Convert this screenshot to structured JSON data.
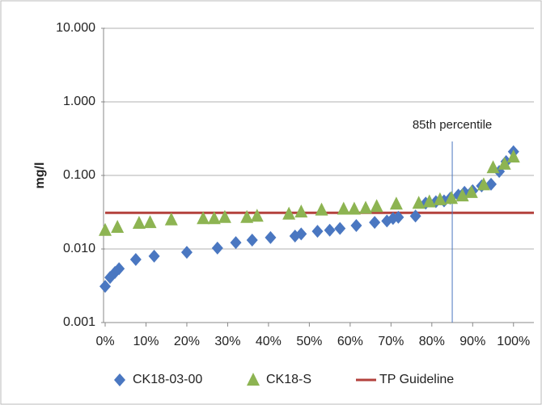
{
  "chart_data": {
    "type": "scatter",
    "y_label": "mg/l",
    "xlim": [
      0,
      105
    ],
    "ylim": [
      0.001,
      10
    ],
    "log_y": true,
    "grid": true,
    "legend": "bottom",
    "xticks": [
      {
        "value": 0,
        "label": "0%"
      },
      {
        "value": 10,
        "label": "10%"
      },
      {
        "value": 20,
        "label": "20%"
      },
      {
        "value": 30,
        "label": "30%"
      },
      {
        "value": 40,
        "label": "40%"
      },
      {
        "value": 50,
        "label": "50%"
      },
      {
        "value": 60,
        "label": "60%"
      },
      {
        "value": 70,
        "label": "70%"
      },
      {
        "value": 80,
        "label": "80%"
      },
      {
        "value": 90,
        "label": "90%"
      },
      {
        "value": 100,
        "label": "100%"
      }
    ],
    "yticks": [
      {
        "value": 0.001,
        "label": "0.001"
      },
      {
        "value": 0.01,
        "label": "0.010"
      },
      {
        "value": 0.1,
        "label": "0.100"
      },
      {
        "value": 1,
        "label": "1.000"
      },
      {
        "value": 10,
        "label": "10.000"
      }
    ],
    "series": [
      {
        "name": "CK18-03-00",
        "color": "#4a77c1",
        "marker": "diamond",
        "x": [
          0,
          1.2,
          2.4,
          3.4,
          7.5,
          12,
          20,
          27.5,
          32,
          36,
          40.5,
          46.5,
          48,
          52,
          55,
          57.5,
          61.5,
          66,
          69,
          70.5,
          71.8,
          76,
          78.5,
          81,
          83,
          84.5,
          86.5,
          88,
          90,
          92.2,
          94.5,
          96.5,
          98.2,
          100
        ],
        "values": [
          0.0031,
          0.0041,
          0.0048,
          0.0054,
          0.0072,
          0.008,
          0.009,
          0.0103,
          0.0122,
          0.0132,
          0.0143,
          0.015,
          0.016,
          0.0174,
          0.018,
          0.019,
          0.0208,
          0.023,
          0.024,
          0.026,
          0.027,
          0.028,
          0.042,
          0.044,
          0.045,
          0.049,
          0.054,
          0.059,
          0.062,
          0.072,
          0.076,
          0.113,
          0.154,
          0.21
        ]
      },
      {
        "name": "CK18-S",
        "color": "#8db452",
        "marker": "triangle",
        "x": [
          0,
          3,
          8.3,
          11,
          16.2,
          24,
          26.7,
          29.3,
          34.7,
          37.2,
          45,
          48,
          53,
          58.4,
          61,
          63.8,
          66.5,
          71.3,
          76.8,
          79.4,
          82,
          84.8,
          87.5,
          89.7,
          92.7,
          95,
          97.8,
          100
        ],
        "values": [
          0.018,
          0.0198,
          0.0225,
          0.023,
          0.025,
          0.026,
          0.026,
          0.027,
          0.027,
          0.028,
          0.03,
          0.032,
          0.034,
          0.035,
          0.035,
          0.036,
          0.038,
          0.041,
          0.042,
          0.044,
          0.047,
          0.049,
          0.053,
          0.059,
          0.075,
          0.128,
          0.143,
          0.179
        ]
      }
    ],
    "guideline": {
      "name": "TP Guideline",
      "color": "#b3413c",
      "value": 0.031
    },
    "percentile_line": {
      "label": "85th percentile",
      "value": 85,
      "color": "#4a77c1"
    }
  }
}
